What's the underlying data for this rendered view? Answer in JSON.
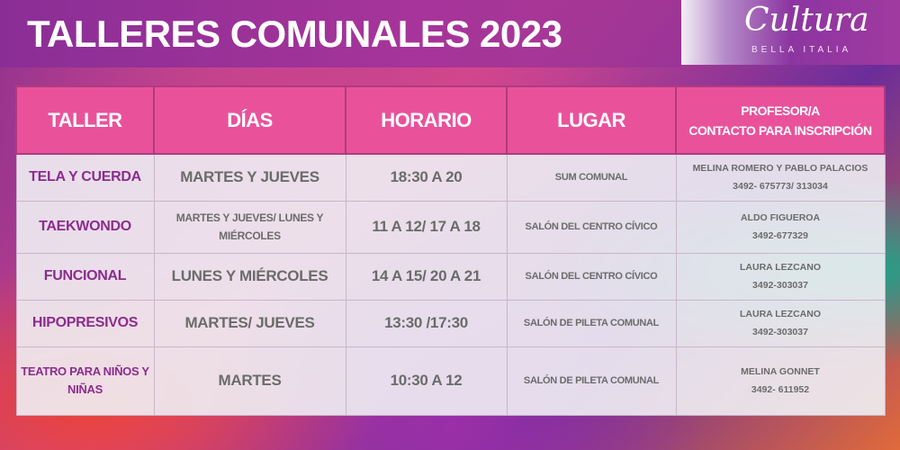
{
  "header": {
    "title": "TALLERES COMUNALES 2023",
    "logo_main": "Cultura",
    "logo_sub": "BELLA ITALIA"
  },
  "table": {
    "columns": [
      "TALLER",
      "DÍAS",
      "HORARIO",
      "LUGAR",
      "PROFESOR/A",
      "CONTACTO PARA INSCRIPCIÓN"
    ],
    "rows": [
      {
        "taller": "TELA Y CUERDA",
        "dias": "MARTES Y JUEVES",
        "horario": "18:30 A 20",
        "lugar": "SUM COMUNAL",
        "profesor": "MELINA ROMERO Y PABLO PALACIOS",
        "contacto": "3492- 675773/ 313034"
      },
      {
        "taller": "TAEKWONDO",
        "dias": "MARTES Y JUEVES/ LUNES Y MIÉRCOLES",
        "horario": "11 A 12/ 17 A 18",
        "lugar": "SALÓN DEL CENTRO CÍVICO",
        "profesor": "ALDO FIGUEROA",
        "contacto": "3492-677329"
      },
      {
        "taller": "FUNCIONAL",
        "dias": "LUNES Y MIÉRCOLES",
        "horario": "14 A 15/ 20 A 21",
        "lugar": "SALÓN DEL CENTRO CÍVICO",
        "profesor": "LAURA LEZCANO",
        "contacto": "3492-303037"
      },
      {
        "taller": "HIPOPRESIVOS",
        "dias": "MARTES/ JUEVES",
        "horario": "13:30 /17:30",
        "lugar": "SALÓN DE PILETA COMUNAL",
        "profesor": "LAURA LEZCANO",
        "contacto": "3492-303037"
      },
      {
        "taller": "TEATRO PARA NIÑOS Y NIÑAS",
        "dias": "MARTES",
        "horario": "10:30 A 12",
        "lugar": "SALÓN DE PILETA COMUNAL",
        "profesor": "MELINA GONNET",
        "contacto": "3492- 611952"
      }
    ]
  }
}
